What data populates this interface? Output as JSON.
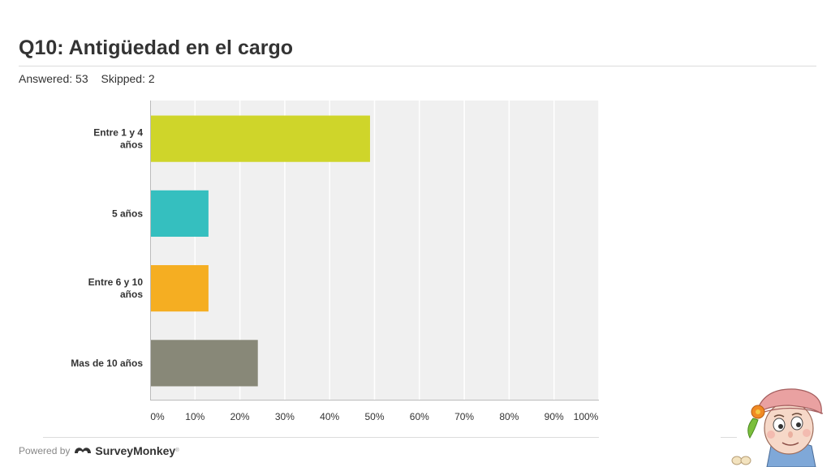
{
  "header": {
    "title": "Q10: Antigüedad en el cargo",
    "answered": "Answered: 53",
    "skipped": "Skipped: 2"
  },
  "chart_data": {
    "type": "bar",
    "orientation": "horizontal",
    "categories": [
      "Entre 1 y 4 años",
      "5 años",
      "Entre 6 y 10 años",
      "Mas de 10 años"
    ],
    "values": [
      49,
      13,
      13,
      24
    ],
    "colors": [
      "#cfd52a",
      "#35bfbf",
      "#f5ae22",
      "#888878"
    ],
    "xlim": [
      0,
      100
    ],
    "xticks": [
      "0%",
      "10%",
      "20%",
      "30%",
      "40%",
      "50%",
      "60%",
      "70%",
      "80%",
      "90%",
      "100%"
    ],
    "grid": true
  },
  "footer": {
    "powered_by": "Powered by",
    "brand": "SurveyMonkey",
    "trademark": "®",
    "logo_icon": "surveymonkey-logo-icon",
    "mascot": "cartoon-character-illustration"
  }
}
